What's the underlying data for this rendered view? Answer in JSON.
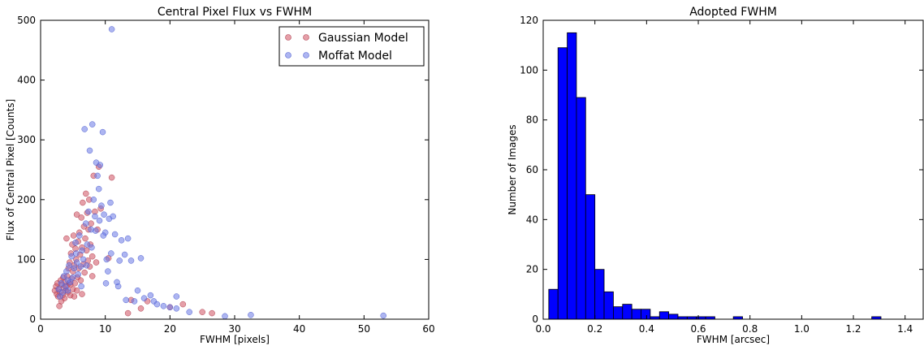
{
  "chart_data": [
    {
      "type": "scatter",
      "title": "Central Pixel Flux vs FWHM",
      "xlabel": "FWHM [pixels]",
      "ylabel": "Flux of Central Pixel [Counts]",
      "xlim": [
        0,
        60
      ],
      "ylim": [
        0,
        500
      ],
      "xticks": [
        0,
        10,
        20,
        30,
        40,
        50,
        60
      ],
      "yticks": [
        0,
        100,
        200,
        300,
        400,
        500
      ],
      "legend_position": "top-right",
      "series": [
        {
          "name": "Gaussian Model",
          "color": "#d05060",
          "points": [
            [
              2.2,
              48
            ],
            [
              2.4,
              55
            ],
            [
              2.5,
              42
            ],
            [
              2.6,
              60
            ],
            [
              2.7,
              38
            ],
            [
              2.8,
              50
            ],
            [
              2.9,
              22
            ],
            [
              3.0,
              45
            ],
            [
              3.1,
              65
            ],
            [
              3.2,
              30
            ],
            [
              3.3,
              58
            ],
            [
              3.4,
              40
            ],
            [
              3.5,
              70
            ],
            [
              3.6,
              52
            ],
            [
              3.7,
              35
            ],
            [
              3.8,
              62
            ],
            [
              3.9,
              48
            ],
            [
              4.0,
              135
            ],
            [
              4.0,
              55
            ],
            [
              4.1,
              72
            ],
            [
              4.2,
              45
            ],
            [
              4.3,
              85
            ],
            [
              4.4,
              60
            ],
            [
              4.5,
              95
            ],
            [
              4.6,
              40
            ],
            [
              4.7,
              110
            ],
            [
              4.8,
              68
            ],
            [
              4.9,
              125
            ],
            [
              5.0,
              50
            ],
            [
              5.0,
              80
            ],
            [
              5.1,
              140
            ],
            [
              5.2,
              90
            ],
            [
              5.3,
              60
            ],
            [
              5.4,
              118
            ],
            [
              5.5,
              100
            ],
            [
              5.6,
              175
            ],
            [
              5.7,
              70
            ],
            [
              5.8,
              130
            ],
            [
              5.9,
              85
            ],
            [
              6.0,
              145
            ],
            [
              6.1,
              108
            ],
            [
              6.2,
              65
            ],
            [
              6.3,
              170
            ],
            [
              6.4,
              120
            ],
            [
              6.5,
              195
            ],
            [
              6.6,
              92
            ],
            [
              6.7,
              155
            ],
            [
              6.8,
              78
            ],
            [
              6.9,
              135
            ],
            [
              7.0,
              210
            ],
            [
              7.1,
              115
            ],
            [
              7.2,
              178
            ],
            [
              7.3,
              98
            ],
            [
              7.4,
              150
            ],
            [
              7.5,
              200
            ],
            [
              7.7,
              125
            ],
            [
              7.8,
              160
            ],
            [
              8.0,
              105
            ],
            [
              8.2,
              240
            ],
            [
              8.4,
              180
            ],
            [
              8.6,
              95
            ],
            [
              8.8,
              150
            ],
            [
              9.0,
              255
            ],
            [
              9.3,
              185
            ],
            [
              10.5,
              102
            ],
            [
              11.0,
              237
            ],
            [
              13.5,
              10
            ],
            [
              14.0,
              32
            ],
            [
              15.5,
              18
            ],
            [
              16.5,
              30
            ],
            [
              20.0,
              20
            ],
            [
              22.0,
              25
            ],
            [
              25.0,
              12
            ],
            [
              26.5,
              10
            ],
            [
              5.2,
              38
            ],
            [
              5.6,
              48
            ],
            [
              4.6,
              58
            ],
            [
              6.4,
              42
            ],
            [
              7.6,
              88
            ],
            [
              8.0,
              72
            ]
          ]
        },
        {
          "name": "Moffat Model",
          "color": "#6a78e6",
          "points": [
            [
              2.8,
              50
            ],
            [
              3.0,
              38
            ],
            [
              3.2,
              60
            ],
            [
              3.4,
              45
            ],
            [
              3.6,
              72
            ],
            [
              3.8,
              55
            ],
            [
              4.0,
              80
            ],
            [
              4.2,
              48
            ],
            [
              4.4,
              90
            ],
            [
              4.6,
              62
            ],
            [
              4.8,
              105
            ],
            [
              5.0,
              70
            ],
            [
              5.2,
              85
            ],
            [
              5.4,
              128
            ],
            [
              5.6,
              95
            ],
            [
              5.8,
              75
            ],
            [
              6.0,
              140
            ],
            [
              6.2,
              88
            ],
            [
              6.4,
              115
            ],
            [
              6.6,
              100
            ],
            [
              6.8,
              318
            ],
            [
              7.0,
              160
            ],
            [
              7.2,
              125
            ],
            [
              7.4,
              180
            ],
            [
              7.6,
              282
            ],
            [
              7.8,
              150
            ],
            [
              8.0,
              326
            ],
            [
              8.2,
              200
            ],
            [
              8.4,
              172
            ],
            [
              8.6,
              262
            ],
            [
              8.8,
              240
            ],
            [
              9.0,
              218
            ],
            [
              9.2,
              258
            ],
            [
              9.4,
              190
            ],
            [
              9.6,
              313
            ],
            [
              9.8,
              175
            ],
            [
              10.0,
              145
            ],
            [
              10.2,
              100
            ],
            [
              10.4,
              80
            ],
            [
              10.6,
              168
            ],
            [
              10.8,
              195
            ],
            [
              11.0,
              485
            ],
            [
              11.2,
              172
            ],
            [
              11.5,
              142
            ],
            [
              12.0,
              55
            ],
            [
              12.5,
              132
            ],
            [
              13.0,
              108
            ],
            [
              13.5,
              135
            ],
            [
              14.0,
              98
            ],
            [
              14.5,
              30
            ],
            [
              15.0,
              48
            ],
            [
              15.5,
              102
            ],
            [
              16.0,
              35
            ],
            [
              17.0,
              40
            ],
            [
              17.5,
              30
            ],
            [
              18.0,
              25
            ],
            [
              19.0,
              22
            ],
            [
              20.0,
              20
            ],
            [
              21.0,
              18
            ],
            [
              21.0,
              38
            ],
            [
              23.0,
              12
            ],
            [
              28.5,
              5
            ],
            [
              32.5,
              7
            ],
            [
              53.0,
              6
            ],
            [
              4.2,
              65
            ],
            [
              5.5,
              110
            ],
            [
              6.3,
              55
            ],
            [
              7.1,
              90
            ],
            [
              7.9,
              120
            ],
            [
              8.5,
              148
            ],
            [
              9.1,
              165
            ],
            [
              9.7,
              140
            ],
            [
              10.1,
              60
            ],
            [
              10.9,
              110
            ],
            [
              11.8,
              62
            ],
            [
              12.2,
              98
            ],
            [
              13.2,
              32
            ]
          ]
        }
      ]
    },
    {
      "type": "bar",
      "title": "Adopted FWHM",
      "xlabel": "FWHM [arcsec]",
      "ylabel": "Number of Images",
      "xlim": [
        0.0,
        1.47
      ],
      "ylim": [
        0,
        120
      ],
      "xticks": [
        0.0,
        0.2,
        0.4,
        0.6,
        0.8,
        1.0,
        1.2,
        1.4
      ],
      "xticklabels": [
        "0.0",
        "0.2",
        "0.4",
        "0.6",
        "0.8",
        "1.0",
        "1.2",
        "1.4"
      ],
      "yticks": [
        0,
        20,
        40,
        60,
        80,
        100,
        120
      ],
      "color": "#0000ff",
      "bin_width": 0.0357,
      "bin_start": 0.0215,
      "counts": [
        12,
        109,
        115,
        89,
        50,
        20,
        11,
        5,
        6,
        4,
        4,
        1,
        3,
        2,
        1,
        1,
        1,
        1,
        0,
        0,
        1,
        0,
        0,
        0,
        0,
        0,
        0,
        0,
        0,
        0,
        0,
        0,
        0,
        0,
        0,
        1,
        0,
        0,
        0
      ]
    }
  ]
}
